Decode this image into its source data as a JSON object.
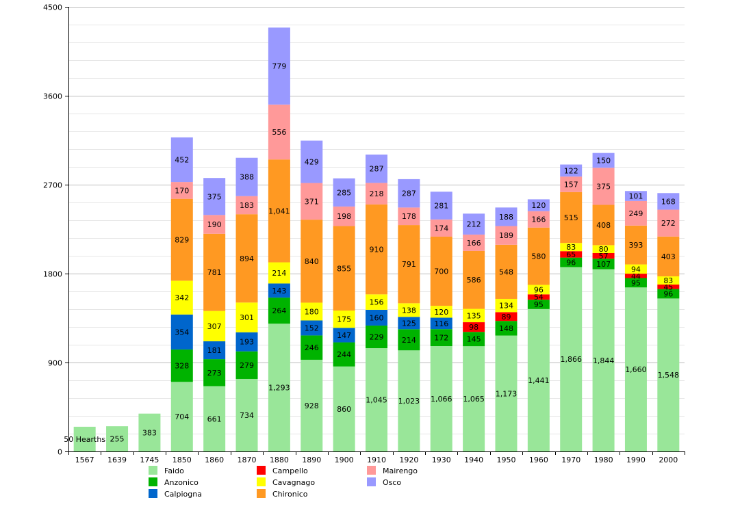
{
  "chart_data": {
    "type": "bar",
    "stacked": true,
    "title": "",
    "xlabel": "",
    "ylabel": "",
    "ylim": [
      0,
      4500
    ],
    "yticks": [
      0,
      900,
      1800,
      2700,
      3600,
      4500
    ],
    "grid": true,
    "legend_position": "bottom",
    "categories": [
      "1567",
      "1639",
      "1745",
      "1850",
      "1860",
      "1870",
      "1880",
      "1890",
      "1900",
      "1910",
      "1920",
      "1930",
      "1940",
      "1950",
      "1960",
      "1970",
      "1980",
      "1990",
      "2000"
    ],
    "first_label": "50 Hearths",
    "series": [
      {
        "name": "Faido",
        "color": "#99e699",
        "values": [
          250,
          255,
          383,
          704,
          661,
          734,
          1293,
          928,
          860,
          1045,
          1023,
          1066,
          1065,
          1173,
          1441,
          1866,
          1844,
          1660,
          1548
        ],
        "labels": [
          "50 Hearths",
          "255",
          "383",
          "704",
          "661",
          "734",
          "1,293",
          "928",
          "860",
          "1,045",
          "1,023",
          "1,066",
          "1,065",
          "1,173",
          "1,441",
          "1,866",
          "1,844",
          "1,660",
          "1,548"
        ]
      },
      {
        "name": "Anzonico",
        "color": "#00b300",
        "values": [
          null,
          null,
          null,
          328,
          273,
          279,
          264,
          246,
          244,
          229,
          214,
          172,
          145,
          148,
          95,
          96,
          107,
          95,
          96
        ],
        "labels": [
          null,
          null,
          null,
          "328",
          "273",
          "279",
          "264",
          "246",
          "244",
          "229",
          "214",
          "172",
          "145",
          "148",
          "95",
          "96",
          "107",
          "95",
          "96"
        ]
      },
      {
        "name": "Calpiogna",
        "color": "#0066cc",
        "values": [
          null,
          null,
          null,
          354,
          181,
          193,
          143,
          152,
          147,
          160,
          125,
          116,
          null,
          null,
          null,
          null,
          null,
          null,
          null
        ],
        "labels": [
          null,
          null,
          null,
          "354",
          "181",
          "193",
          "143",
          "152",
          "147",
          "160",
          "125",
          "116",
          null,
          null,
          null,
          null,
          null,
          null,
          null
        ]
      },
      {
        "name": "Campello",
        "color": "#ff0000",
        "values": [
          null,
          null,
          null,
          null,
          null,
          null,
          null,
          null,
          null,
          null,
          null,
          null,
          98,
          89,
          54,
          65,
          57,
          44,
          45
        ],
        "labels": [
          null,
          null,
          null,
          null,
          null,
          null,
          null,
          null,
          null,
          null,
          null,
          null,
          "98",
          "89",
          "54",
          "65",
          "57",
          "44",
          "45"
        ]
      },
      {
        "name": "Cavagnago",
        "color": "#ffff00",
        "values": [
          null,
          null,
          null,
          342,
          307,
          301,
          214,
          180,
          175,
          156,
          138,
          120,
          135,
          134,
          96,
          83,
          80,
          94,
          83
        ],
        "labels": [
          null,
          null,
          null,
          "342",
          "307",
          "301",
          "214",
          "180",
          "175",
          "156",
          "138",
          "120",
          "135",
          "134",
          "96",
          "83",
          "80",
          "94",
          "83"
        ]
      },
      {
        "name": "Chironico",
        "color": "#ff9922",
        "values": [
          null,
          null,
          null,
          829,
          781,
          894,
          1041,
          840,
          855,
          910,
          791,
          700,
          586,
          548,
          580,
          515,
          408,
          393,
          403
        ],
        "labels": [
          null,
          null,
          null,
          "829",
          "781",
          "894",
          "1,041",
          "840",
          "855",
          "910",
          "791",
          "700",
          "586",
          "548",
          "580",
          "515",
          "408",
          "393",
          "403"
        ]
      },
      {
        "name": "Mairengo",
        "color": "#ff9999",
        "values": [
          null,
          null,
          null,
          170,
          190,
          183,
          556,
          371,
          198,
          218,
          178,
          174,
          166,
          189,
          166,
          157,
          375,
          249,
          272
        ],
        "labels": [
          null,
          null,
          null,
          "170",
          "190",
          "183",
          "556",
          "371",
          "198",
          "218",
          "178",
          "174",
          "166",
          "189",
          "166",
          "157",
          "375",
          "249",
          "272"
        ]
      },
      {
        "name": "Osco",
        "color": "#9999ff",
        "values": [
          null,
          null,
          null,
          452,
          375,
          388,
          779,
          429,
          285,
          287,
          287,
          281,
          212,
          188,
          120,
          122,
          150,
          101,
          168
        ],
        "labels": [
          null,
          null,
          null,
          "452",
          "375",
          "388",
          "779",
          "429",
          "285",
          "287",
          "287",
          "281",
          "212",
          "188",
          "120",
          "122",
          "150",
          "101",
          "168"
        ]
      }
    ]
  }
}
